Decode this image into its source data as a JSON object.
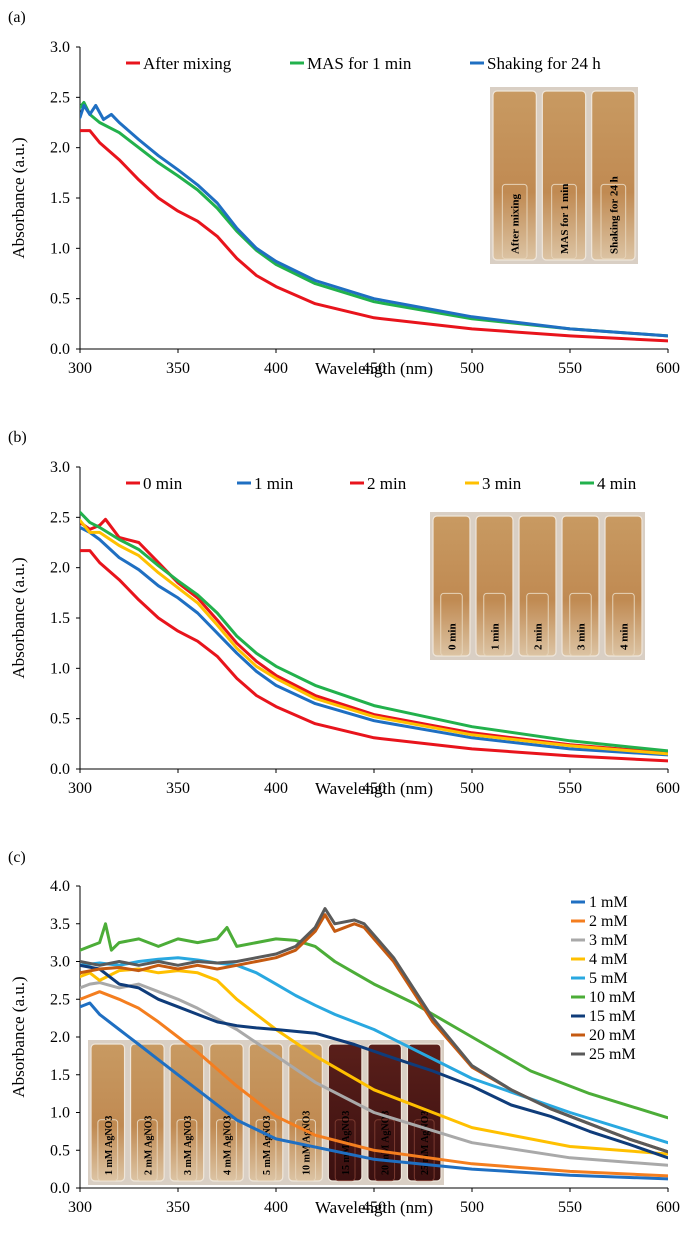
{
  "panels": [
    {
      "label": "(a)",
      "type": "line",
      "xlabel": "Wavelength (nm)",
      "ylabel": "Absorbance (a.u.)",
      "xlim": [
        300,
        600
      ],
      "ylim": [
        0,
        3.0
      ],
      "xticks": [
        300,
        350,
        400,
        450,
        500,
        550,
        600
      ],
      "yticks": [
        0.0,
        0.5,
        1.0,
        1.5,
        2.0,
        2.5,
        3.0
      ],
      "ytick_decimals": 1,
      "legend": "top",
      "series": [
        {
          "name": "After mixing",
          "color": "#e8141c",
          "x": [
            300,
            305,
            310,
            320,
            330,
            340,
            350,
            360,
            370,
            380,
            390,
            400,
            420,
            450,
            500,
            550,
            600
          ],
          "y": [
            2.17,
            2.17,
            2.05,
            1.88,
            1.68,
            1.5,
            1.37,
            1.27,
            1.12,
            0.9,
            0.73,
            0.62,
            0.45,
            0.31,
            0.2,
            0.13,
            0.08
          ]
        },
        {
          "name": "MAS for 1 min",
          "color": "#22b14c",
          "x": [
            300,
            302,
            305,
            310,
            320,
            330,
            340,
            350,
            360,
            370,
            380,
            390,
            400,
            420,
            450,
            500,
            550,
            600
          ],
          "y": [
            2.4,
            2.45,
            2.33,
            2.25,
            2.15,
            2.0,
            1.85,
            1.72,
            1.58,
            1.4,
            1.17,
            0.98,
            0.84,
            0.65,
            0.47,
            0.3,
            0.2,
            0.13
          ]
        },
        {
          "name": "Shaking for 24 h",
          "color": "#1f6fc2",
          "x": [
            300,
            302,
            305,
            308,
            312,
            316,
            320,
            330,
            340,
            350,
            360,
            370,
            380,
            390,
            400,
            420,
            450,
            500,
            550,
            600
          ],
          "y": [
            2.3,
            2.42,
            2.33,
            2.42,
            2.28,
            2.33,
            2.25,
            2.08,
            1.92,
            1.78,
            1.63,
            1.45,
            1.2,
            1.0,
            0.87,
            0.68,
            0.5,
            0.32,
            0.2,
            0.13
          ]
        }
      ],
      "photo": {
        "labels": [
          "After mixing",
          "MAS for 1 min",
          "Shaking for 24 h"
        ]
      }
    },
    {
      "label": "(b)",
      "type": "line",
      "xlabel": "Wavelength (nm)",
      "ylabel": "Absorbance (a.u.)",
      "xlim": [
        300,
        600
      ],
      "ylim": [
        0,
        3.0
      ],
      "xticks": [
        300,
        350,
        400,
        450,
        500,
        550,
        600
      ],
      "yticks": [
        0.0,
        0.5,
        1.0,
        1.5,
        2.0,
        2.5,
        3.0
      ],
      "ytick_decimals": 1,
      "legend": "top",
      "series": [
        {
          "name": "0 min",
          "color": "#e8141c",
          "x": [
            300,
            305,
            310,
            320,
            330,
            340,
            350,
            360,
            370,
            380,
            390,
            400,
            420,
            450,
            500,
            550,
            600
          ],
          "y": [
            2.17,
            2.17,
            2.05,
            1.88,
            1.68,
            1.5,
            1.37,
            1.27,
            1.12,
            0.9,
            0.73,
            0.62,
            0.45,
            0.31,
            0.2,
            0.13,
            0.08
          ]
        },
        {
          "name": "1 min",
          "color": "#1f6fc2",
          "x": [
            300,
            305,
            310,
            320,
            330,
            340,
            350,
            360,
            370,
            380,
            390,
            400,
            420,
            450,
            500,
            550,
            600
          ],
          "y": [
            2.4,
            2.35,
            2.28,
            2.1,
            1.98,
            1.82,
            1.7,
            1.55,
            1.35,
            1.15,
            0.97,
            0.83,
            0.65,
            0.48,
            0.31,
            0.2,
            0.14
          ]
        },
        {
          "name": "2 min",
          "color": "#e8141c",
          "x": [
            300,
            305,
            310,
            313,
            320,
            330,
            340,
            350,
            360,
            370,
            380,
            390,
            400,
            420,
            450,
            500,
            550,
            600
          ],
          "y": [
            2.45,
            2.38,
            2.42,
            2.48,
            2.3,
            2.25,
            2.05,
            1.85,
            1.7,
            1.48,
            1.25,
            1.07,
            0.93,
            0.73,
            0.54,
            0.36,
            0.24,
            0.16
          ]
        },
        {
          "name": "3 min",
          "color": "#ffc000",
          "x": [
            300,
            305,
            310,
            320,
            330,
            340,
            350,
            360,
            370,
            380,
            390,
            400,
            420,
            450,
            500,
            550,
            600
          ],
          "y": [
            2.47,
            2.35,
            2.35,
            2.22,
            2.12,
            1.95,
            1.8,
            1.65,
            1.43,
            1.2,
            1.02,
            0.9,
            0.7,
            0.52,
            0.34,
            0.23,
            0.15
          ]
        },
        {
          "name": "4 min",
          "color": "#22b14c",
          "x": [
            300,
            305,
            310,
            320,
            330,
            340,
            350,
            360,
            370,
            380,
            390,
            400,
            420,
            450,
            500,
            550,
            600
          ],
          "y": [
            2.55,
            2.45,
            2.4,
            2.28,
            2.18,
            2.02,
            1.87,
            1.73,
            1.55,
            1.32,
            1.15,
            1.02,
            0.83,
            0.63,
            0.42,
            0.28,
            0.18
          ]
        }
      ],
      "photo": {
        "labels": [
          "0 min",
          "1 min",
          "2 min",
          "3 min",
          "4 min"
        ]
      }
    },
    {
      "label": "(c)",
      "type": "line",
      "xlabel": "Wavelength (nm)",
      "ylabel": "Absorbance (a.u.)",
      "xlim": [
        300,
        600
      ],
      "ylim": [
        0,
        4.0
      ],
      "xticks": [
        300,
        350,
        400,
        450,
        500,
        550,
        600
      ],
      "yticks": [
        0.0,
        0.5,
        1.0,
        1.5,
        2.0,
        2.5,
        3.0,
        3.5,
        4.0
      ],
      "ytick_decimals": 1,
      "legend": "right",
      "series": [
        {
          "name": "1 mM",
          "color": "#1f6fc2",
          "x": [
            300,
            305,
            310,
            320,
            330,
            340,
            350,
            360,
            380,
            400,
            450,
            500,
            550,
            600
          ],
          "y": [
            2.4,
            2.45,
            2.3,
            2.1,
            1.9,
            1.7,
            1.5,
            1.3,
            0.9,
            0.65,
            0.38,
            0.25,
            0.17,
            0.12
          ]
        },
        {
          "name": "2 mM",
          "color": "#f47e1f",
          "x": [
            300,
            305,
            310,
            320,
            330,
            340,
            350,
            360,
            380,
            400,
            420,
            450,
            500,
            550,
            600
          ],
          "y": [
            2.5,
            2.55,
            2.6,
            2.5,
            2.38,
            2.2,
            2.0,
            1.8,
            1.35,
            0.95,
            0.7,
            0.5,
            0.32,
            0.22,
            0.16
          ]
        },
        {
          "name": "3 mM",
          "color": "#a9a9a9",
          "x": [
            300,
            305,
            310,
            320,
            330,
            340,
            350,
            360,
            380,
            400,
            420,
            450,
            500,
            550,
            600
          ],
          "y": [
            2.65,
            2.7,
            2.72,
            2.65,
            2.7,
            2.6,
            2.5,
            2.38,
            2.1,
            1.75,
            1.4,
            1.0,
            0.6,
            0.4,
            0.3
          ]
        },
        {
          "name": "4 mM",
          "color": "#ffc000",
          "x": [
            300,
            305,
            310,
            320,
            330,
            340,
            350,
            360,
            370,
            380,
            390,
            400,
            420,
            450,
            500,
            550,
            600
          ],
          "y": [
            2.8,
            2.85,
            2.75,
            2.88,
            2.9,
            2.85,
            2.88,
            2.85,
            2.75,
            2.5,
            2.3,
            2.1,
            1.75,
            1.3,
            0.8,
            0.55,
            0.45
          ]
        },
        {
          "name": "5 mM",
          "color": "#29a8e0",
          "x": [
            300,
            310,
            320,
            330,
            340,
            350,
            360,
            370,
            380,
            390,
            400,
            410,
            420,
            430,
            450,
            500,
            550,
            600
          ],
          "y": [
            2.95,
            2.98,
            2.95,
            3.0,
            3.03,
            3.05,
            3.02,
            2.98,
            2.95,
            2.85,
            2.7,
            2.55,
            2.42,
            2.3,
            2.1,
            1.45,
            1.0,
            0.6
          ]
        },
        {
          "name": "10 mM",
          "color": "#4cad38",
          "x": [
            300,
            305,
            310,
            313,
            316,
            320,
            330,
            340,
            350,
            360,
            370,
            375,
            380,
            390,
            400,
            410,
            420,
            430,
            440,
            450,
            470,
            500,
            530,
            560,
            600
          ],
          "y": [
            3.15,
            3.2,
            3.25,
            3.5,
            3.15,
            3.25,
            3.3,
            3.2,
            3.3,
            3.25,
            3.3,
            3.45,
            3.2,
            3.25,
            3.3,
            3.28,
            3.2,
            3.0,
            2.85,
            2.7,
            2.45,
            2.0,
            1.55,
            1.25,
            0.93
          ]
        },
        {
          "name": "15 mM",
          "color": "#0f3c7a",
          "x": [
            300,
            310,
            320,
            330,
            340,
            350,
            360,
            370,
            380,
            390,
            400,
            420,
            440,
            460,
            480,
            500,
            520,
            540,
            560,
            580,
            600
          ],
          "y": [
            2.95,
            2.9,
            2.7,
            2.65,
            2.5,
            2.4,
            2.3,
            2.2,
            2.15,
            2.12,
            2.1,
            2.05,
            1.9,
            1.72,
            1.55,
            1.35,
            1.1,
            0.95,
            0.75,
            0.58,
            0.4
          ]
        },
        {
          "name": "20 mM",
          "color": "#c55a11",
          "x": [
            300,
            310,
            320,
            330,
            340,
            350,
            360,
            370,
            380,
            390,
            400,
            410,
            420,
            425,
            430,
            440,
            445,
            450,
            460,
            470,
            480,
            500,
            520,
            540,
            560,
            580,
            600
          ],
          "y": [
            2.85,
            2.9,
            2.92,
            2.88,
            2.95,
            2.9,
            2.95,
            2.9,
            2.95,
            3.0,
            3.05,
            3.15,
            3.4,
            3.62,
            3.4,
            3.5,
            3.45,
            3.3,
            3.0,
            2.6,
            2.2,
            1.6,
            1.3,
            1.05,
            0.85,
            0.65,
            0.48
          ]
        },
        {
          "name": "25 mM",
          "color": "#5a5a5a",
          "x": [
            300,
            310,
            320,
            330,
            340,
            350,
            360,
            370,
            380,
            390,
            400,
            410,
            420,
            425,
            430,
            440,
            445,
            450,
            460,
            470,
            480,
            500,
            520,
            540,
            560,
            580,
            600
          ],
          "y": [
            3.0,
            2.95,
            3.0,
            2.95,
            3.0,
            2.95,
            3.0,
            2.98,
            3.0,
            3.05,
            3.1,
            3.2,
            3.45,
            3.7,
            3.5,
            3.55,
            3.5,
            3.35,
            3.05,
            2.65,
            2.25,
            1.62,
            1.3,
            1.05,
            0.85,
            0.65,
            0.48
          ]
        }
      ],
      "photo": {
        "labels": [
          "1 mM AgNO3",
          "2 mM AgNO3",
          "3 mM AgNO3",
          "4 mM AgNO3",
          "5 mM AgNO3",
          "10 mM AgNO3",
          "15 mM AgNO3",
          "20 mM AgNO3",
          "25 mM AgNO3"
        ]
      }
    }
  ]
}
